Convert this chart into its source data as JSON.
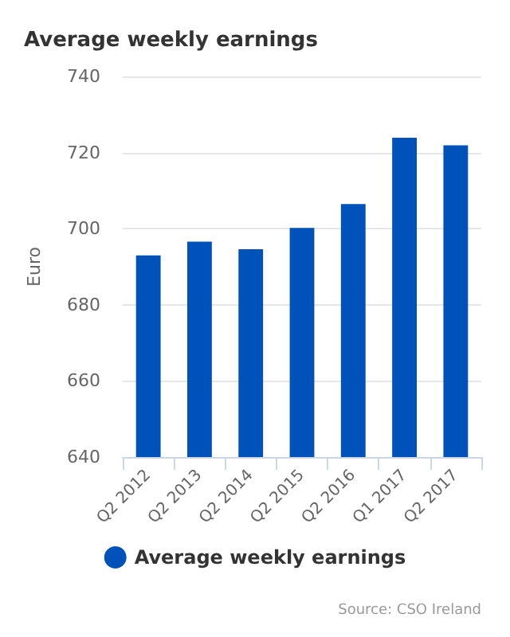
{
  "chart_data": {
    "type": "bar",
    "title": "Average weekly earnings",
    "ylabel": "Euro",
    "categories": [
      "Q2 2012",
      "Q2 2013",
      "Q2 2014",
      "Q2 2015",
      "Q2 2016",
      "Q1 2017",
      "Q2 2017"
    ],
    "series": [
      {
        "name": "Average weekly earnings",
        "color": "#0052bb",
        "values": [
          693.0,
          696.6,
          694.6,
          700.2,
          706.5,
          723.9,
          721.9
        ]
      }
    ],
    "ylim": [
      640,
      740
    ],
    "yticks": [
      640,
      660,
      680,
      700,
      720,
      740
    ],
    "grid": "y",
    "legend": "bottom",
    "annotations": [
      "Source: CSO Ireland"
    ]
  }
}
